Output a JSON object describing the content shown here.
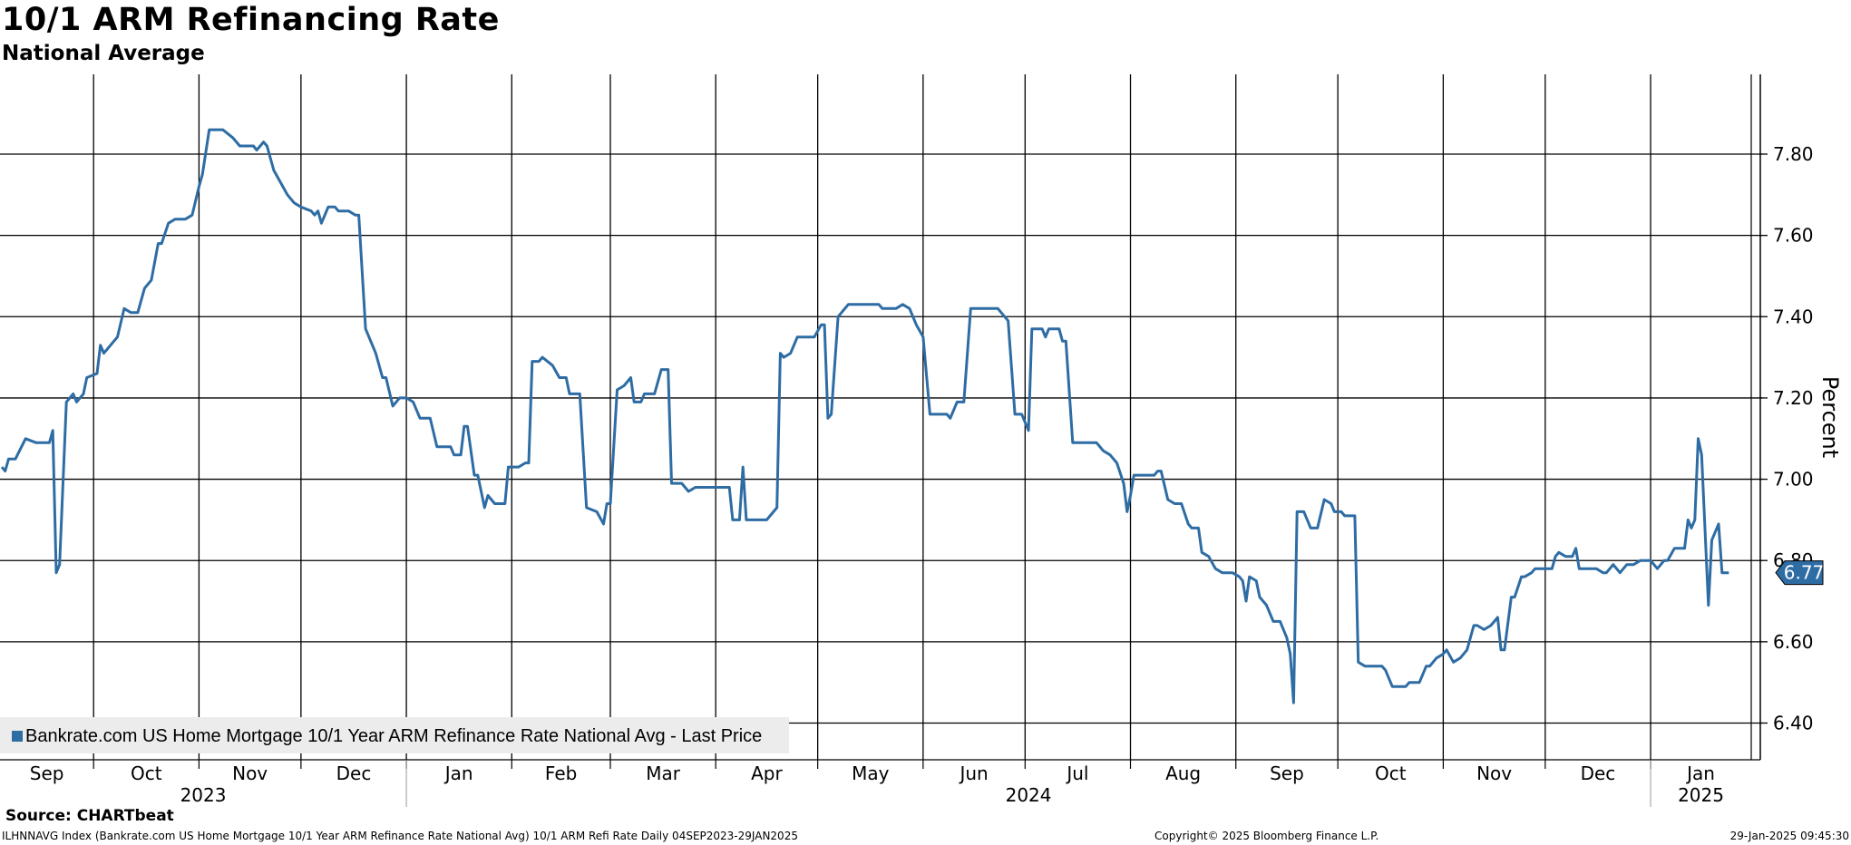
{
  "header": {
    "title": "10/1 ARM Refinancing Rate",
    "subtitle": "National Average"
  },
  "footer": {
    "source": "Source: CHARTbeat",
    "ticker_info": "ILHNNAVG Index (Bankrate.com US Home Mortgage 10/1 Year ARM Refinance Rate National Avg) 10/1 ARM Refi Rate  Daily 04SEP2023-29JAN2025",
    "copyright": "Copyright© 2025 Bloomberg Finance L.P.",
    "timestamp": "29-Jan-2025 09:45:30"
  },
  "colors": {
    "line": "#2e6ca4",
    "grid": "#000000",
    "legend_bg": "#ececec"
  },
  "chart_data": {
    "type": "line",
    "title": "10/1 ARM Refinancing Rate",
    "subtitle": "National Average",
    "ylabel": "Percent",
    "ylim": [
      6.3,
      7.98
    ],
    "yticks": [
      6.4,
      6.6,
      6.8,
      7.0,
      7.2,
      7.4,
      7.6,
      7.8
    ],
    "ytick_labels": [
      "6.40",
      "6.60",
      "6.80",
      "7.00",
      "7.20",
      "7.40",
      "7.60",
      "7.80"
    ],
    "x_start": "2023-09-04",
    "x_end": "2025-01-29",
    "month_labels": [
      "Sep",
      "Oct",
      "Nov",
      "Dec",
      "Jan",
      "Feb",
      "Mar",
      "Apr",
      "May",
      "Jun",
      "Jul",
      "Aug",
      "Sep",
      "Oct",
      "Nov",
      "Dec",
      "Jan"
    ],
    "year_labels": [
      "2023",
      "2024",
      "2025"
    ],
    "last_value_label": "6.77",
    "grid": true,
    "legend_position": "bottom-left",
    "series": [
      {
        "name": "Bankrate.com US Home Mortgage 10/1 Year ARM Refinance Rate National Avg - Last Price",
        "color": "#2e6ca4",
        "points": [
          [
            "2023-09-04",
            7.03
          ],
          [
            "2023-09-05",
            7.02
          ],
          [
            "2023-09-06",
            7.05
          ],
          [
            "2023-09-08",
            7.05
          ],
          [
            "2023-09-11",
            7.1
          ],
          [
            "2023-09-14",
            7.09
          ],
          [
            "2023-09-18",
            7.09
          ],
          [
            "2023-09-19",
            7.12
          ],
          [
            "2023-09-20",
            6.77
          ],
          [
            "2023-09-21",
            6.79
          ],
          [
            "2023-09-23",
            7.19
          ],
          [
            "2023-09-25",
            7.21
          ],
          [
            "2023-09-26",
            7.19
          ],
          [
            "2023-09-28",
            7.21
          ],
          [
            "2023-09-29",
            7.25
          ],
          [
            "2023-10-02",
            7.26
          ],
          [
            "2023-10-03",
            7.33
          ],
          [
            "2023-10-04",
            7.31
          ],
          [
            "2023-10-07",
            7.34
          ],
          [
            "2023-10-08",
            7.35
          ],
          [
            "2023-10-10",
            7.42
          ],
          [
            "2023-10-12",
            7.41
          ],
          [
            "2023-10-14",
            7.41
          ],
          [
            "2023-10-16",
            7.47
          ],
          [
            "2023-10-18",
            7.49
          ],
          [
            "2023-10-20",
            7.58
          ],
          [
            "2023-10-21",
            7.58
          ],
          [
            "2023-10-23",
            7.63
          ],
          [
            "2023-10-25",
            7.64
          ],
          [
            "2023-10-28",
            7.64
          ],
          [
            "2023-10-30",
            7.65
          ],
          [
            "2023-11-01",
            7.72
          ],
          [
            "2023-11-02",
            7.75
          ],
          [
            "2023-11-04",
            7.86
          ],
          [
            "2023-11-08",
            7.86
          ],
          [
            "2023-11-11",
            7.84
          ],
          [
            "2023-11-13",
            7.82
          ],
          [
            "2023-11-17",
            7.82
          ],
          [
            "2023-11-18",
            7.81
          ],
          [
            "2023-11-20",
            7.83
          ],
          [
            "2023-11-21",
            7.82
          ],
          [
            "2023-11-23",
            7.76
          ],
          [
            "2023-11-27",
            7.7
          ],
          [
            "2023-11-29",
            7.68
          ],
          [
            "2023-12-01",
            7.67
          ],
          [
            "2023-12-04",
            7.66
          ],
          [
            "2023-12-05",
            7.65
          ],
          [
            "2023-12-06",
            7.66
          ],
          [
            "2023-12-07",
            7.63
          ],
          [
            "2023-12-09",
            7.67
          ],
          [
            "2023-12-11",
            7.67
          ],
          [
            "2023-12-12",
            7.66
          ],
          [
            "2023-12-15",
            7.66
          ],
          [
            "2023-12-17",
            7.65
          ],
          [
            "2023-12-18",
            7.65
          ],
          [
            "2023-12-20",
            7.37
          ],
          [
            "2023-12-23",
            7.31
          ],
          [
            "2023-12-25",
            7.25
          ],
          [
            "2023-12-26",
            7.25
          ],
          [
            "2023-12-28",
            7.18
          ],
          [
            "2023-12-30",
            7.2
          ],
          [
            "2024-01-01",
            7.2
          ],
          [
            "2024-01-03",
            7.19
          ],
          [
            "2024-01-05",
            7.15
          ],
          [
            "2024-01-08",
            7.15
          ],
          [
            "2024-01-10",
            7.08
          ],
          [
            "2024-01-14",
            7.08
          ],
          [
            "2024-01-15",
            7.06
          ],
          [
            "2024-01-17",
            7.06
          ],
          [
            "2024-01-18",
            7.13
          ],
          [
            "2024-01-19",
            7.13
          ],
          [
            "2024-01-21",
            7.01
          ],
          [
            "2024-01-22",
            7.01
          ],
          [
            "2024-01-24",
            6.93
          ],
          [
            "2024-01-25",
            6.96
          ],
          [
            "2024-01-27",
            6.94
          ],
          [
            "2024-01-30",
            6.94
          ],
          [
            "2024-01-31",
            7.03
          ],
          [
            "2024-02-03",
            7.03
          ],
          [
            "2024-02-05",
            7.04
          ],
          [
            "2024-02-06",
            7.04
          ],
          [
            "2024-02-07",
            7.29
          ],
          [
            "2024-02-09",
            7.29
          ],
          [
            "2024-02-10",
            7.3
          ],
          [
            "2024-02-13",
            7.28
          ],
          [
            "2024-02-15",
            7.25
          ],
          [
            "2024-02-17",
            7.25
          ],
          [
            "2024-02-18",
            7.21
          ],
          [
            "2024-02-21",
            7.21
          ],
          [
            "2024-02-23",
            6.93
          ],
          [
            "2024-02-26",
            6.92
          ],
          [
            "2024-02-28",
            6.89
          ],
          [
            "2024-02-29",
            6.94
          ],
          [
            "2024-03-01",
            6.94
          ],
          [
            "2024-03-03",
            7.22
          ],
          [
            "2024-03-05",
            7.23
          ],
          [
            "2024-03-07",
            7.25
          ],
          [
            "2024-03-08",
            7.19
          ],
          [
            "2024-03-10",
            7.19
          ],
          [
            "2024-03-11",
            7.21
          ],
          [
            "2024-03-14",
            7.21
          ],
          [
            "2024-03-16",
            7.27
          ],
          [
            "2024-03-18",
            7.27
          ],
          [
            "2024-03-19",
            6.99
          ],
          [
            "2024-03-22",
            6.99
          ],
          [
            "2024-03-24",
            6.97
          ],
          [
            "2024-03-26",
            6.98
          ],
          [
            "2024-04-05",
            6.98
          ],
          [
            "2024-04-06",
            6.9
          ],
          [
            "2024-04-08",
            6.9
          ],
          [
            "2024-04-09",
            7.03
          ],
          [
            "2024-04-10",
            6.9
          ],
          [
            "2024-04-16",
            6.9
          ],
          [
            "2024-04-19",
            6.93
          ],
          [
            "2024-04-20",
            7.31
          ],
          [
            "2024-04-21",
            7.3
          ],
          [
            "2024-04-23",
            7.31
          ],
          [
            "2024-04-25",
            7.35
          ],
          [
            "2024-04-30",
            7.35
          ],
          [
            "2024-05-02",
            7.38
          ],
          [
            "2024-05-03",
            7.38
          ],
          [
            "2024-05-04",
            7.15
          ],
          [
            "2024-05-05",
            7.16
          ],
          [
            "2024-05-07",
            7.4
          ],
          [
            "2024-05-09",
            7.42
          ],
          [
            "2024-05-10",
            7.43
          ],
          [
            "2024-05-19",
            7.43
          ],
          [
            "2024-05-20",
            7.42
          ],
          [
            "2024-05-24",
            7.42
          ],
          [
            "2024-05-26",
            7.43
          ],
          [
            "2024-05-28",
            7.42
          ],
          [
            "2024-05-30",
            7.38
          ],
          [
            "2024-06-01",
            7.35
          ],
          [
            "2024-06-03",
            7.16
          ],
          [
            "2024-06-05",
            7.16
          ],
          [
            "2024-06-08",
            7.16
          ],
          [
            "2024-06-09",
            7.15
          ],
          [
            "2024-06-11",
            7.19
          ],
          [
            "2024-06-13",
            7.19
          ],
          [
            "2024-06-15",
            7.42
          ],
          [
            "2024-06-23",
            7.42
          ],
          [
            "2024-06-25",
            7.4
          ],
          [
            "2024-06-26",
            7.39
          ],
          [
            "2024-06-28",
            7.16
          ],
          [
            "2024-06-30",
            7.16
          ],
          [
            "2024-07-02",
            7.12
          ],
          [
            "2024-07-03",
            7.37
          ],
          [
            "2024-07-06",
            7.37
          ],
          [
            "2024-07-07",
            7.35
          ],
          [
            "2024-07-08",
            7.37
          ],
          [
            "2024-07-11",
            7.37
          ],
          [
            "2024-07-12",
            7.34
          ],
          [
            "2024-07-13",
            7.34
          ],
          [
            "2024-07-15",
            7.09
          ],
          [
            "2024-07-22",
            7.09
          ],
          [
            "2024-07-24",
            7.07
          ],
          [
            "2024-07-26",
            7.06
          ],
          [
            "2024-07-28",
            7.04
          ],
          [
            "2024-07-30",
            6.99
          ],
          [
            "2024-07-31",
            6.92
          ],
          [
            "2024-08-01",
            6.96
          ],
          [
            "2024-08-02",
            7.01
          ],
          [
            "2024-08-08",
            7.01
          ],
          [
            "2024-08-09",
            7.02
          ],
          [
            "2024-08-10",
            7.02
          ],
          [
            "2024-08-12",
            6.95
          ],
          [
            "2024-08-14",
            6.94
          ],
          [
            "2024-08-16",
            6.94
          ],
          [
            "2024-08-18",
            6.89
          ],
          [
            "2024-08-19",
            6.88
          ],
          [
            "2024-08-21",
            6.88
          ],
          [
            "2024-08-22",
            6.82
          ],
          [
            "2024-08-24",
            6.81
          ],
          [
            "2024-08-26",
            6.78
          ],
          [
            "2024-08-28",
            6.77
          ],
          [
            "2024-08-31",
            6.77
          ],
          [
            "2024-09-02",
            6.76
          ],
          [
            "2024-09-03",
            6.75
          ],
          [
            "2024-09-04",
            6.7
          ],
          [
            "2024-09-05",
            6.76
          ],
          [
            "2024-09-07",
            6.75
          ],
          [
            "2024-09-08",
            6.71
          ],
          [
            "2024-09-10",
            6.69
          ],
          [
            "2024-09-12",
            6.65
          ],
          [
            "2024-09-14",
            6.65
          ],
          [
            "2024-09-16",
            6.61
          ],
          [
            "2024-09-17",
            6.57
          ],
          [
            "2024-09-18",
            6.45
          ],
          [
            "2024-09-19",
            6.92
          ],
          [
            "2024-09-21",
            6.92
          ],
          [
            "2024-09-23",
            6.88
          ],
          [
            "2024-09-25",
            6.88
          ],
          [
            "2024-09-27",
            6.95
          ],
          [
            "2024-09-29",
            6.94
          ],
          [
            "2024-09-30",
            6.92
          ],
          [
            "2024-10-02",
            6.92
          ],
          [
            "2024-10-03",
            6.91
          ],
          [
            "2024-10-06",
            6.91
          ],
          [
            "2024-10-07",
            6.55
          ],
          [
            "2024-10-09",
            6.54
          ],
          [
            "2024-10-14",
            6.54
          ],
          [
            "2024-10-15",
            6.53
          ],
          [
            "2024-10-17",
            6.49
          ],
          [
            "2024-10-21",
            6.49
          ],
          [
            "2024-10-22",
            6.5
          ],
          [
            "2024-10-25",
            6.5
          ],
          [
            "2024-10-27",
            6.54
          ],
          [
            "2024-10-28",
            6.54
          ],
          [
            "2024-10-30",
            6.56
          ],
          [
            "2024-11-01",
            6.57
          ],
          [
            "2024-11-02",
            6.58
          ],
          [
            "2024-11-04",
            6.55
          ],
          [
            "2024-11-06",
            6.56
          ],
          [
            "2024-11-08",
            6.58
          ],
          [
            "2024-11-10",
            6.64
          ],
          [
            "2024-11-11",
            6.64
          ],
          [
            "2024-11-13",
            6.63
          ],
          [
            "2024-11-15",
            6.64
          ],
          [
            "2024-11-17",
            6.66
          ],
          [
            "2024-11-18",
            6.58
          ],
          [
            "2024-11-19",
            6.58
          ],
          [
            "2024-11-21",
            6.71
          ],
          [
            "2024-11-22",
            6.71
          ],
          [
            "2024-11-24",
            6.76
          ],
          [
            "2024-11-25",
            6.76
          ],
          [
            "2024-11-27",
            6.77
          ],
          [
            "2024-11-28",
            6.78
          ],
          [
            "2024-12-03",
            6.78
          ],
          [
            "2024-12-04",
            6.81
          ],
          [
            "2024-12-05",
            6.82
          ],
          [
            "2024-12-07",
            6.81
          ],
          [
            "2024-12-09",
            6.81
          ],
          [
            "2024-12-10",
            6.83
          ],
          [
            "2024-12-11",
            6.78
          ],
          [
            "2024-12-16",
            6.78
          ],
          [
            "2024-12-18",
            6.77
          ],
          [
            "2024-12-19",
            6.77
          ],
          [
            "2024-12-21",
            6.79
          ],
          [
            "2024-12-23",
            6.77
          ],
          [
            "2024-12-25",
            6.79
          ],
          [
            "2024-12-27",
            6.79
          ],
          [
            "2024-12-29",
            6.8
          ],
          [
            "2025-01-01",
            6.8
          ],
          [
            "2025-01-03",
            6.78
          ],
          [
            "2025-01-05",
            6.8
          ],
          [
            "2025-01-06",
            6.8
          ],
          [
            "2025-01-08",
            6.83
          ],
          [
            "2025-01-11",
            6.83
          ],
          [
            "2025-01-12",
            6.9
          ],
          [
            "2025-01-13",
            6.88
          ],
          [
            "2025-01-14",
            6.9
          ],
          [
            "2025-01-15",
            7.1
          ],
          [
            "2025-01-16",
            7.06
          ],
          [
            "2025-01-18",
            6.69
          ],
          [
            "2025-01-19",
            6.85
          ],
          [
            "2025-01-21",
            6.89
          ],
          [
            "2025-01-22",
            6.77
          ],
          [
            "2025-01-24",
            6.77
          ]
        ]
      }
    ]
  }
}
